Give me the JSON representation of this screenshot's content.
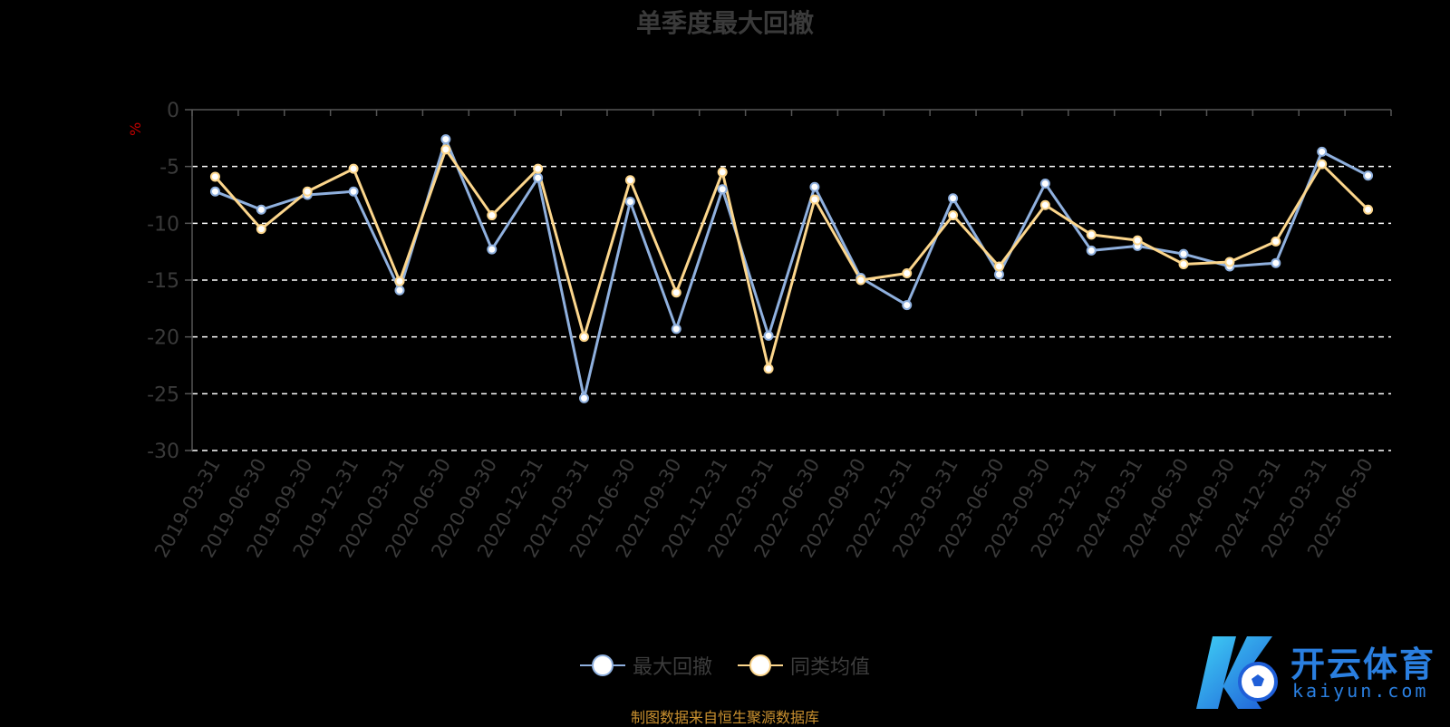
{
  "title": "单季度最大回撤",
  "unit": "%",
  "source_note": "制图数据来自恒生聚源数据库",
  "watermark": {
    "cn": "开云体育",
    "en": "kaiyun.com"
  },
  "colors": {
    "background": "#000000",
    "series_max_drawdown": "#8fb0de",
    "series_peer_avg": "#fcd68c",
    "grid": "#ffffff",
    "axis": "#555555",
    "tick_text": "#3a3a3a",
    "source": "#c9902f",
    "unit": "#c00000"
  },
  "chart_data": {
    "type": "line",
    "title": "单季度最大回撤",
    "ylabel": "%",
    "ylim": [
      -30,
      0
    ],
    "yticks": [
      0,
      -5,
      -10,
      -15,
      -20,
      -25,
      -30
    ],
    "grid": true,
    "legend_position": "bottom",
    "categories": [
      "2019-03-31",
      "2019-06-30",
      "2019-09-30",
      "2019-12-31",
      "2020-03-31",
      "2020-06-30",
      "2020-09-30",
      "2020-12-31",
      "2021-03-31",
      "2021-06-30",
      "2021-09-30",
      "2021-12-31",
      "2022-03-31",
      "2022-06-30",
      "2022-09-30",
      "2022-12-31",
      "2023-03-31",
      "2023-06-30",
      "2023-09-30",
      "2023-12-31",
      "2024-03-31",
      "2024-06-30",
      "2024-09-30",
      "2024-12-31",
      "2025-03-31",
      "2025-06-30"
    ],
    "series": [
      {
        "name": "最大回撤",
        "values": [
          -7.2,
          -8.8,
          -7.5,
          -7.2,
          -15.9,
          -2.6,
          -12.3,
          -6.0,
          -25.4,
          -8.1,
          -19.3,
          -7.0,
          -19.9,
          -6.8,
          -14.8,
          -17.2,
          -7.8,
          -14.5,
          -6.5,
          -12.4,
          -12.0,
          -12.7,
          -13.8,
          -13.5,
          -3.7,
          -5.8
        ]
      },
      {
        "name": "同类均值",
        "values": [
          -5.9,
          -10.5,
          -7.2,
          -5.2,
          -15.1,
          -3.5,
          -9.3,
          -5.2,
          -20.0,
          -6.2,
          -16.1,
          -5.5,
          -22.8,
          -7.9,
          -15.0,
          -14.4,
          -9.3,
          -13.8,
          -8.4,
          -11.0,
          -11.5,
          -13.6,
          -13.4,
          -11.6,
          -4.8,
          -8.8
        ]
      }
    ]
  }
}
